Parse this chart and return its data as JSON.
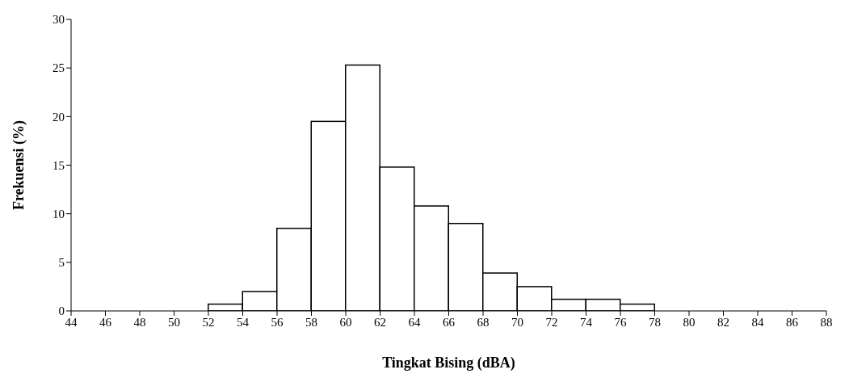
{
  "chart_data": {
    "type": "histogram",
    "xlabel": "Tingkat Bising (dBA)",
    "ylabel": "Frekuensi (%)",
    "bins": [
      52,
      54,
      56,
      58,
      60,
      62,
      64,
      66,
      68,
      70,
      72,
      74,
      76,
      78
    ],
    "values": [
      0.7,
      2.0,
      8.5,
      19.5,
      25.3,
      14.8,
      10.8,
      9.0,
      3.9,
      2.5,
      1.2,
      1.2,
      0.7
    ],
    "color": "#ffffff",
    "xlim": [
      44,
      88
    ],
    "xticks": [
      44,
      46,
      48,
      50,
      52,
      54,
      56,
      58,
      60,
      62,
      64,
      66,
      68,
      70,
      72,
      74,
      76,
      78,
      80,
      82,
      84,
      86,
      88
    ],
    "ylim": [
      0,
      30
    ],
    "yticks": [
      0,
      5,
      10,
      15,
      20,
      25,
      30
    ],
    "grid": false
  }
}
